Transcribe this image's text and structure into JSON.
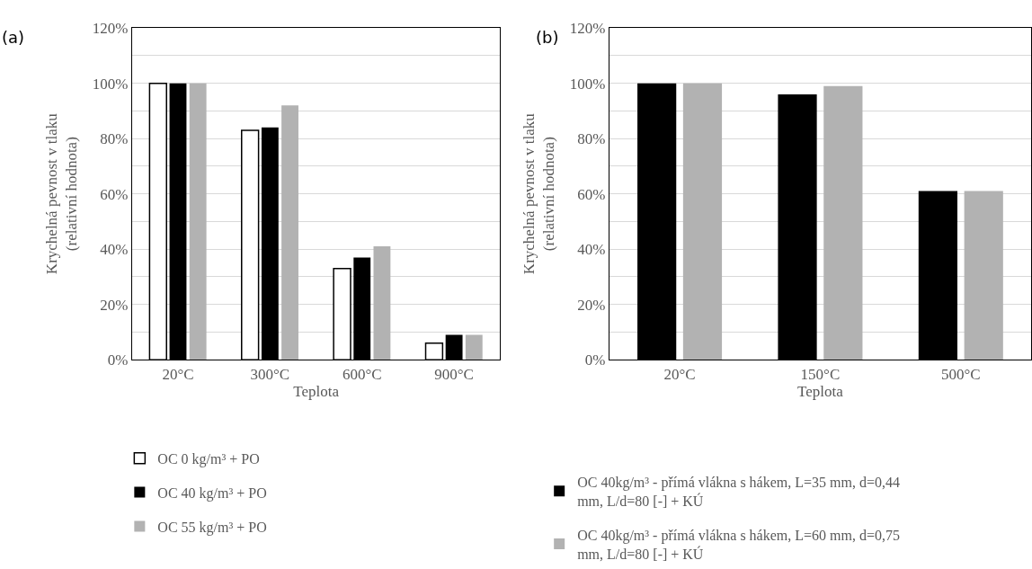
{
  "chart_data": [
    {
      "type": "bar",
      "title": "(a)",
      "xlabel": "Teplota",
      "ylabel": "Krychelná pevnost v tlaku\n(relativní hodnota)",
      "categories": [
        "20°C",
        "300°C",
        "600°C",
        "900°C"
      ],
      "series": [
        {
          "name": "OC 0 kg/m³ + PO",
          "color": "#ffffff",
          "values": [
            100,
            83,
            33,
            6
          ]
        },
        {
          "name": "OC 40 kg/m³ + PO",
          "color": "#000000",
          "values": [
            100,
            84,
            37,
            9
          ]
        },
        {
          "name": "OC 55 kg/m³ + PO",
          "color": "#b2b2b2",
          "values": [
            100,
            92,
            41,
            9
          ]
        }
      ],
      "ylim": [
        0,
        120
      ],
      "yticks": [
        {
          "value": 0,
          "label": "0%"
        },
        {
          "value": 10,
          "label": null
        },
        {
          "value": 20,
          "label": "20%"
        },
        {
          "value": 30,
          "label": null
        },
        {
          "value": 40,
          "label": "40%"
        },
        {
          "value": 50,
          "label": null
        },
        {
          "value": 60,
          "label": "60%"
        },
        {
          "value": 70,
          "label": null
        },
        {
          "value": 80,
          "label": "80%"
        },
        {
          "value": 90,
          "label": null
        },
        {
          "value": 100,
          "label": "100%"
        },
        {
          "value": 110,
          "label": null
        },
        {
          "value": 120,
          "label": "120%"
        }
      ],
      "grid": "y",
      "legend": "bottom"
    },
    {
      "type": "bar",
      "title": "(b)",
      "xlabel": "Teplota",
      "ylabel": "Krychelná pevnost v tlaku\n(relativní hodnota)",
      "categories": [
        "20°C",
        "150°C",
        "500°C"
      ],
      "series": [
        {
          "name": "OC 40kg/m³ - přímá vlákna s hákem, L=35 mm, d=0,44 mm, L/d=80 [-] + KÚ",
          "color": "#000000",
          "values": [
            100,
            96,
            61
          ]
        },
        {
          "name": "OC 40kg/m³ - přímá vlákna s hákem, L=60 mm, d=0,75 mm, L/d=80 [-] + KÚ",
          "color": "#b2b2b2",
          "values": [
            100,
            99,
            61
          ]
        }
      ],
      "ylim": [
        0,
        120
      ],
      "yticks": [
        {
          "value": 0,
          "label": "0%"
        },
        {
          "value": 10,
          "label": null
        },
        {
          "value": 20,
          "label": "20%"
        },
        {
          "value": 30,
          "label": null
        },
        {
          "value": 40,
          "label": "40%"
        },
        {
          "value": 50,
          "label": null
        },
        {
          "value": 60,
          "label": "60%"
        },
        {
          "value": 70,
          "label": null
        },
        {
          "value": 80,
          "label": "80%"
        },
        {
          "value": 90,
          "label": null
        },
        {
          "value": 100,
          "label": "100%"
        },
        {
          "value": 110,
          "label": null
        },
        {
          "value": 120,
          "label": "120%"
        }
      ],
      "grid": "y",
      "legend": "bottom"
    }
  ]
}
